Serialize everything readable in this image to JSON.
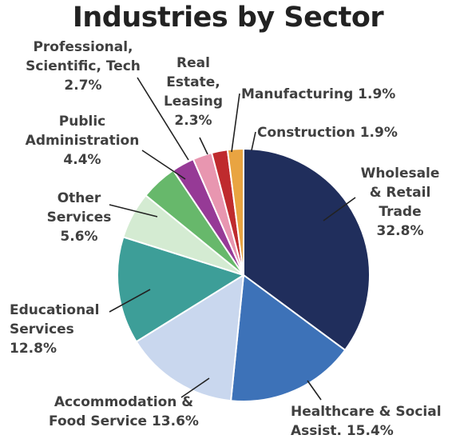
{
  "chart_data": {
    "type": "pie",
    "title": "Industries by Sector",
    "slices": [
      {
        "label": "Wholesale & Retail Trade",
        "value": 32.8,
        "color": "#202e5c",
        "label_lines": [
          "Wholesale",
          "& Retail",
          "Trade",
          "32.8%"
        ]
      },
      {
        "label": "Healthcare & Social Assist.",
        "value": 15.4,
        "color": "#3d72b8",
        "label_lines": [
          "Healthcare & Social",
          "Assist. 15.4%"
        ]
      },
      {
        "label": "Accommodation & Food Service",
        "value": 13.6,
        "color": "#c9d7ee",
        "label_lines": [
          "Accommodation &",
          "Food Service 13.6%"
        ]
      },
      {
        "label": "Educational Services",
        "value": 12.8,
        "color": "#3d9e98",
        "label_lines": [
          "Educational",
          "Services",
          "12.8%"
        ]
      },
      {
        "label": "Other Services",
        "value": 5.6,
        "color": "#d4ebd2",
        "label_lines": [
          "Other",
          "Services",
          "5.6%"
        ]
      },
      {
        "label": "Public Administration",
        "value": 4.4,
        "color": "#67b86b",
        "label_lines": [
          "Public",
          "Administration",
          "4.4%"
        ]
      },
      {
        "label": "Professional, Scientific, Tech",
        "value": 2.7,
        "color": "#963a96",
        "label_lines": [
          "Professional,",
          "Scientific, Tech",
          "2.7%"
        ]
      },
      {
        "label": "Real Estate, Leasing",
        "value": 2.3,
        "color": "#e896b0",
        "label_lines": [
          "Real",
          "Estate,",
          "Leasing",
          "2.3%"
        ]
      },
      {
        "label": "Manufacturing",
        "value": 1.9,
        "color": "#bf2b2e",
        "label_lines": [
          "Manufacturing 1.9%"
        ]
      },
      {
        "label": "Construction",
        "value": 1.9,
        "color": "#e9a441",
        "label_lines": [
          "Construction 1.9%"
        ]
      }
    ]
  }
}
